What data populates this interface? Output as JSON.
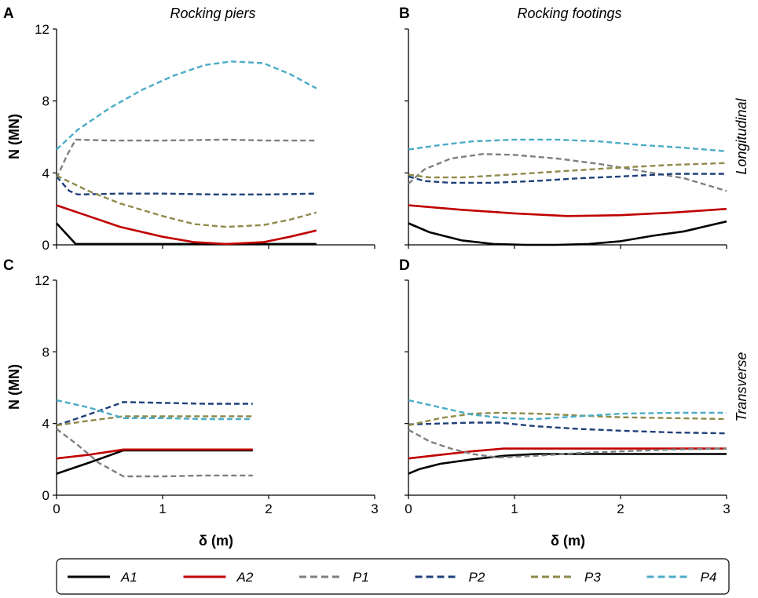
{
  "figure": {
    "column_titles": [
      "Rocking piers",
      "Rocking footings"
    ],
    "row_titles": [
      "Longitudinal",
      "Transverse"
    ],
    "ylabel": "N (MN)",
    "xlabel": "δ (m)"
  },
  "legend": [
    {
      "name": "A1",
      "color": "#000000",
      "dash": "solid"
    },
    {
      "name": "A2",
      "color": "#c00000",
      "dash": "solid"
    },
    {
      "name": "P1",
      "color": "#7f7f7f",
      "dash": "dashed"
    },
    {
      "name": "P2",
      "color": "#1f3f7a",
      "dash": "dashed"
    },
    {
      "name": "P3",
      "color": "#8f8a4a",
      "dash": "dashed"
    },
    {
      "name": "P4",
      "color": "#4bacc6",
      "dash": "dashed"
    }
  ],
  "chart_data": [
    {
      "type": "line",
      "panel": "A",
      "title": "Rocking piers",
      "row_label": "Longitudinal",
      "xlabel": "",
      "ylabel": "N (MN)",
      "xlim": [
        0,
        3
      ],
      "ylim": [
        0,
        12
      ],
      "xticks": [
        0,
        1,
        2,
        3
      ],
      "yticks": [
        0,
        4,
        8,
        12
      ],
      "xtick_labels": [],
      "ytick_labels": [
        "0",
        "4",
        "8",
        "12"
      ],
      "series": [
        {
          "name": "A1",
          "x": [
            0,
            0.18,
            0.5,
            1.0,
            1.5,
            2.0,
            2.45
          ],
          "y": [
            1.2,
            0.05,
            0.05,
            0.05,
            0.05,
            0.05,
            0.05
          ]
        },
        {
          "name": "A2",
          "x": [
            0,
            0.3,
            0.6,
            1.0,
            1.3,
            1.6,
            1.95,
            2.2,
            2.45
          ],
          "y": [
            2.2,
            1.6,
            1.0,
            0.45,
            0.15,
            0.05,
            0.15,
            0.45,
            0.8
          ]
        },
        {
          "name": "P1",
          "x": [
            0,
            0.1,
            0.18,
            0.5,
            1.0,
            1.6,
            2.0,
            2.45
          ],
          "y": [
            3.7,
            5.0,
            5.85,
            5.8,
            5.8,
            5.85,
            5.8,
            5.8
          ]
        },
        {
          "name": "P2",
          "x": [
            0,
            0.12,
            0.2,
            0.6,
            1.0,
            1.5,
            2.0,
            2.45
          ],
          "y": [
            3.8,
            3.0,
            2.8,
            2.85,
            2.85,
            2.8,
            2.8,
            2.85
          ]
        },
        {
          "name": "P3",
          "x": [
            0,
            0.3,
            0.6,
            1.0,
            1.3,
            1.6,
            1.95,
            2.2,
            2.45
          ],
          "y": [
            3.85,
            3.0,
            2.3,
            1.6,
            1.15,
            1.0,
            1.1,
            1.4,
            1.8
          ]
        },
        {
          "name": "P4",
          "x": [
            0,
            0.2,
            0.5,
            0.8,
            1.1,
            1.4,
            1.65,
            1.95,
            2.2,
            2.45
          ],
          "y": [
            5.3,
            6.4,
            7.6,
            8.6,
            9.4,
            10.0,
            10.2,
            10.1,
            9.5,
            8.7
          ]
        }
      ]
    },
    {
      "type": "line",
      "panel": "B",
      "title": "Rocking footings",
      "row_label": "Longitudinal",
      "xlabel": "",
      "ylabel": "",
      "xlim": [
        0,
        3
      ],
      "ylim": [
        0,
        12
      ],
      "xticks": [
        0,
        1,
        2,
        3
      ],
      "yticks": [
        0,
        4,
        8,
        12
      ],
      "xtick_labels": [],
      "ytick_labels": [],
      "series": [
        {
          "name": "A1",
          "x": [
            0,
            0.2,
            0.5,
            0.8,
            1.1,
            1.4,
            1.7,
            2.0,
            2.3,
            2.6,
            3.0
          ],
          "y": [
            1.2,
            0.7,
            0.25,
            0.05,
            0.0,
            0.0,
            0.05,
            0.2,
            0.5,
            0.75,
            1.3
          ]
        },
        {
          "name": "A2",
          "x": [
            0,
            0.5,
            1.0,
            1.5,
            2.0,
            2.5,
            3.0
          ],
          "y": [
            2.2,
            1.95,
            1.75,
            1.6,
            1.65,
            1.8,
            2.0
          ]
        },
        {
          "name": "P1",
          "x": [
            0,
            0.15,
            0.4,
            0.7,
            1.0,
            1.4,
            1.8,
            2.2,
            2.6,
            3.0
          ],
          "y": [
            3.4,
            4.2,
            4.8,
            5.05,
            5.0,
            4.8,
            4.5,
            4.1,
            3.7,
            3.0
          ]
        },
        {
          "name": "P2",
          "x": [
            0,
            0.15,
            0.4,
            0.8,
            1.2,
            1.6,
            2.0,
            2.5,
            3.0
          ],
          "y": [
            3.8,
            3.55,
            3.45,
            3.45,
            3.55,
            3.7,
            3.8,
            3.95,
            3.95
          ]
        },
        {
          "name": "P3",
          "x": [
            0,
            0.2,
            0.5,
            0.8,
            1.2,
            1.6,
            2.0,
            2.5,
            3.0
          ],
          "y": [
            3.9,
            3.75,
            3.75,
            3.85,
            4.0,
            4.15,
            4.3,
            4.45,
            4.55
          ]
        },
        {
          "name": "P4",
          "x": [
            0,
            0.3,
            0.6,
            1.0,
            1.4,
            1.8,
            2.2,
            2.6,
            3.0
          ],
          "y": [
            5.3,
            5.55,
            5.75,
            5.85,
            5.85,
            5.75,
            5.55,
            5.4,
            5.2
          ]
        }
      ]
    },
    {
      "type": "line",
      "panel": "C",
      "title": "",
      "row_label": "Transverse",
      "xlabel": "δ (m)",
      "ylabel": "N (MN)",
      "xlim": [
        0,
        3
      ],
      "ylim": [
        0,
        12
      ],
      "xticks": [
        0,
        1,
        2,
        3
      ],
      "yticks": [
        0,
        4,
        8,
        12
      ],
      "xtick_labels": [
        "0",
        "1",
        "2",
        "3"
      ],
      "ytick_labels": [
        "0",
        "4",
        "8",
        "12"
      ],
      "series": [
        {
          "name": "A1",
          "x": [
            0,
            0.3,
            0.63,
            1.0,
            1.4,
            1.85
          ],
          "y": [
            1.2,
            1.8,
            2.5,
            2.5,
            2.5,
            2.5
          ]
        },
        {
          "name": "A2",
          "x": [
            0,
            0.3,
            0.63,
            1.0,
            1.4,
            1.85
          ],
          "y": [
            2.05,
            2.25,
            2.55,
            2.55,
            2.55,
            2.55
          ]
        },
        {
          "name": "P1",
          "x": [
            0,
            0.2,
            0.4,
            0.63,
            1.0,
            1.4,
            1.85
          ],
          "y": [
            3.7,
            2.8,
            1.8,
            1.05,
            1.05,
            1.1,
            1.1
          ]
        },
        {
          "name": "P2",
          "x": [
            0,
            0.3,
            0.63,
            1.0,
            1.4,
            1.85
          ],
          "y": [
            3.9,
            4.5,
            5.2,
            5.15,
            5.1,
            5.1
          ]
        },
        {
          "name": "P3",
          "x": [
            0,
            0.3,
            0.63,
            1.0,
            1.4,
            1.85
          ],
          "y": [
            3.9,
            4.15,
            4.4,
            4.4,
            4.4,
            4.4
          ]
        },
        {
          "name": "P4",
          "x": [
            0,
            0.3,
            0.63,
            1.0,
            1.4,
            1.85
          ],
          "y": [
            5.3,
            4.9,
            4.3,
            4.3,
            4.25,
            4.25
          ]
        }
      ]
    },
    {
      "type": "line",
      "panel": "D",
      "title": "",
      "row_label": "Transverse",
      "xlabel": "δ (m)",
      "ylabel": "",
      "xlim": [
        0,
        3
      ],
      "ylim": [
        0,
        12
      ],
      "xticks": [
        0,
        1,
        2,
        3
      ],
      "yticks": [
        0,
        4,
        8,
        12
      ],
      "xtick_labels": [
        "0",
        "1",
        "2",
        "3"
      ],
      "ytick_labels": [],
      "series": [
        {
          "name": "A1",
          "x": [
            0,
            0.1,
            0.3,
            0.6,
            0.9,
            1.2,
            1.6,
            2.0,
            2.5,
            3.0
          ],
          "y": [
            1.2,
            1.45,
            1.75,
            2.0,
            2.2,
            2.3,
            2.3,
            2.3,
            2.3,
            2.3
          ]
        },
        {
          "name": "A2",
          "x": [
            0,
            0.3,
            0.6,
            0.9,
            1.2,
            1.6,
            2.0,
            2.5,
            3.0
          ],
          "y": [
            2.05,
            2.25,
            2.45,
            2.6,
            2.6,
            2.6,
            2.6,
            2.6,
            2.6
          ]
        },
        {
          "name": "P1",
          "x": [
            0,
            0.2,
            0.4,
            0.6,
            0.85,
            1.2,
            1.6,
            2.0,
            2.5,
            3.0
          ],
          "y": [
            3.65,
            3.0,
            2.6,
            2.3,
            2.1,
            2.2,
            2.35,
            2.45,
            2.55,
            2.6
          ]
        },
        {
          "name": "P2",
          "x": [
            0,
            0.3,
            0.6,
            0.85,
            1.2,
            1.6,
            2.0,
            2.5,
            3.0
          ],
          "y": [
            3.95,
            4.0,
            4.05,
            4.05,
            3.85,
            3.7,
            3.6,
            3.5,
            3.45
          ]
        },
        {
          "name": "P3",
          "x": [
            0,
            0.3,
            0.6,
            0.85,
            1.2,
            1.6,
            2.0,
            2.5,
            3.0
          ],
          "y": [
            3.9,
            4.3,
            4.55,
            4.6,
            4.55,
            4.45,
            4.35,
            4.3,
            4.25
          ]
        },
        {
          "name": "P4",
          "x": [
            0,
            0.3,
            0.6,
            0.9,
            1.2,
            1.6,
            2.0,
            2.5,
            3.0
          ],
          "y": [
            5.3,
            4.9,
            4.5,
            4.3,
            4.25,
            4.4,
            4.55,
            4.6,
            4.6
          ]
        }
      ]
    }
  ]
}
